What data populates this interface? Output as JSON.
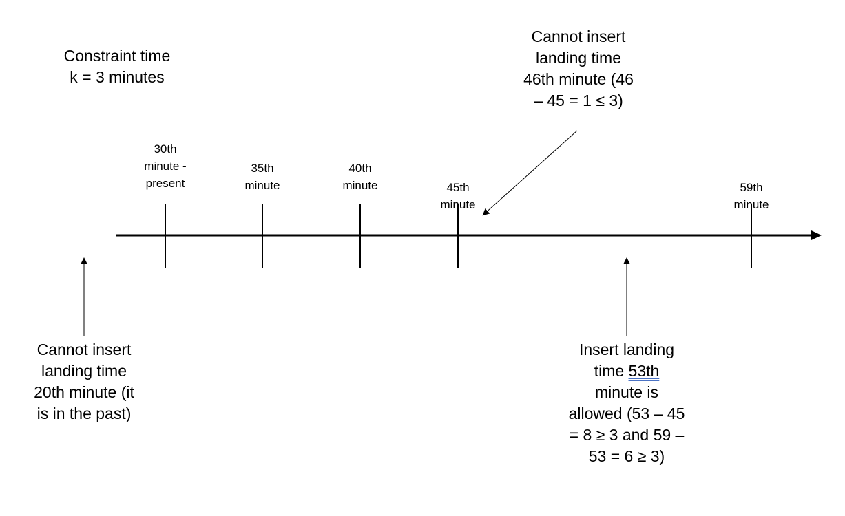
{
  "constraint": {
    "title": "Constraint time",
    "value": "k = 3 minutes"
  },
  "timeline": {
    "ticks": [
      {
        "id": "t30",
        "label_lines": [
          "30th",
          "minute -",
          "present"
        ]
      },
      {
        "id": "t35",
        "label_lines": [
          "35th",
          "minute"
        ]
      },
      {
        "id": "t40",
        "label_lines": [
          "40th",
          "minute"
        ]
      },
      {
        "id": "t45",
        "label_lines": [
          "45th",
          "minute"
        ]
      },
      {
        "id": "t59",
        "label_lines": [
          "59th",
          "minute"
        ]
      }
    ]
  },
  "annotations": {
    "past": {
      "lines": [
        "Cannot insert",
        "landing time",
        "20th minute (it",
        "is in the past)"
      ]
    },
    "conflict": {
      "lines": [
        "Cannot insert",
        "landing time",
        "46th minute (46",
        "– 45 = 1 ≤ 3)"
      ]
    },
    "allowed": {
      "line1": "Insert landing",
      "line2_prefix": "time ",
      "line2_highlight": "53th",
      "lines_rest": [
        "minute is",
        "allowed (53 – 45",
        "= 8 ≥ 3 and 59 –",
        "53 = 6 ≥ 3)"
      ]
    }
  },
  "colors": {
    "ink": "#000000",
    "spellcheck_underline": "#4a72c4"
  }
}
